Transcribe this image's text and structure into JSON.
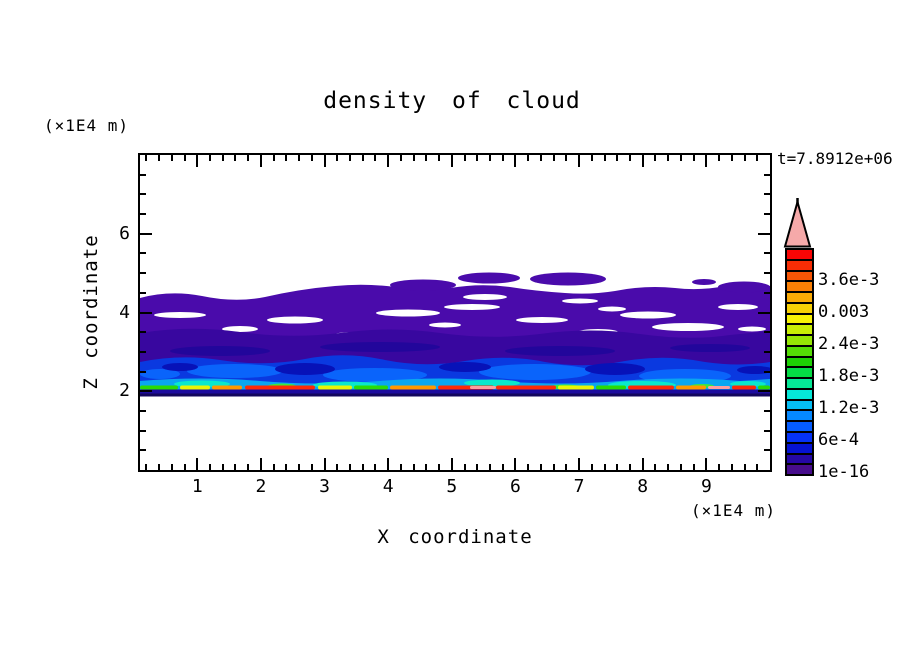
{
  "title": "density of cloud",
  "timestamp": "t=7.8912e+06",
  "axes": {
    "x": {
      "label": "X coordinate",
      "unit": "(×1E4 m)",
      "range": [
        0.1,
        10
      ],
      "major_ticks": [
        1,
        2,
        3,
        4,
        5,
        6,
        7,
        8,
        9
      ],
      "major_tick_labels": [
        "1",
        "2",
        "3",
        "4",
        "5",
        "6",
        "7",
        "8",
        "9"
      ],
      "minor_step": 0.2
    },
    "y": {
      "label": "Z coordinate",
      "unit": "(×1E4 m)",
      "range": [
        0,
        8
      ],
      "major_ticks": [
        2,
        4,
        6
      ],
      "major_tick_labels": [
        "2",
        "4",
        "6"
      ],
      "minor_step": 0.5
    }
  },
  "colorbar": {
    "labels_top_to_bottom": [
      "3.6e-3",
      "0.003",
      "2.4e-3",
      "1.8e-3",
      "1.2e-3",
      "6e-4",
      "1e-16"
    ],
    "label_every_n_segments": 3,
    "segments_top_to_bottom": [
      "#FA0505",
      "#F72D05",
      "#F75505",
      "#FA8005",
      "#FAAA05",
      "#F7D005",
      "#F7F205",
      "#C8EE05",
      "#96E605",
      "#55DC05",
      "#1ED105",
      "#05DC46",
      "#05E896",
      "#05E8D8",
      "#05BEF5",
      "#0588FF",
      "#055CFF",
      "#0532F7",
      "#0512D2",
      "#2508A5",
      "#470D8C"
    ],
    "arrow_color": "#F5A9A9"
  },
  "chart_data": {
    "type": "heatmap",
    "title": "density of cloud",
    "xlabel": "X coordinate (×1E4 m)",
    "ylabel": "Z coordinate (×1E4 m)",
    "xlim": [
      0.1,
      10
    ],
    "ylim": [
      0,
      8
    ],
    "x_major_ticks": [
      1,
      2,
      3,
      4,
      5,
      6,
      7,
      8,
      9
    ],
    "y_major_ticks": [
      2,
      4,
      6
    ],
    "time_annotation": "t=7.8912e+06",
    "colorbar_levels": [
      1e-16,
      0.0002,
      0.0004,
      0.0006,
      0.0008,
      0.001,
      0.0012,
      0.0014,
      0.0016,
      0.0018,
      0.002,
      0.0022,
      0.0024,
      0.0026,
      0.0028,
      0.003,
      0.0032,
      0.0034,
      0.0036,
      0.0038,
      0.004,
      0.0042
    ],
    "colorbar_labeled_levels": [
      "1e-16",
      "6e-4",
      "1.2e-3",
      "1.8e-3",
      "2.4e-3",
      "0.003",
      "3.6e-3"
    ],
    "features": {
      "cloud_base_z": 2.0,
      "cloud_top_z_range": [
        4.2,
        4.8
      ],
      "detached_patches_x": [
        4.3,
        5.4,
        6.8,
        9.6
      ],
      "detached_patches_z": [
        4.7,
        4.9,
        4.9,
        4.6
      ],
      "max_density_band": "thin streaky layer just above z=2 reaching >3.6e-3 (green/yellow/orange/red)",
      "vertical_structure": "density near 1e-16 (indigo) at cloud top, increasing downward through purples and blues (6e-4 to 1.8e-3) to cyan/green, peaking in a thin red band at cloud base z=2; white (no cloud) above z~4.8 and below z=2"
    }
  }
}
